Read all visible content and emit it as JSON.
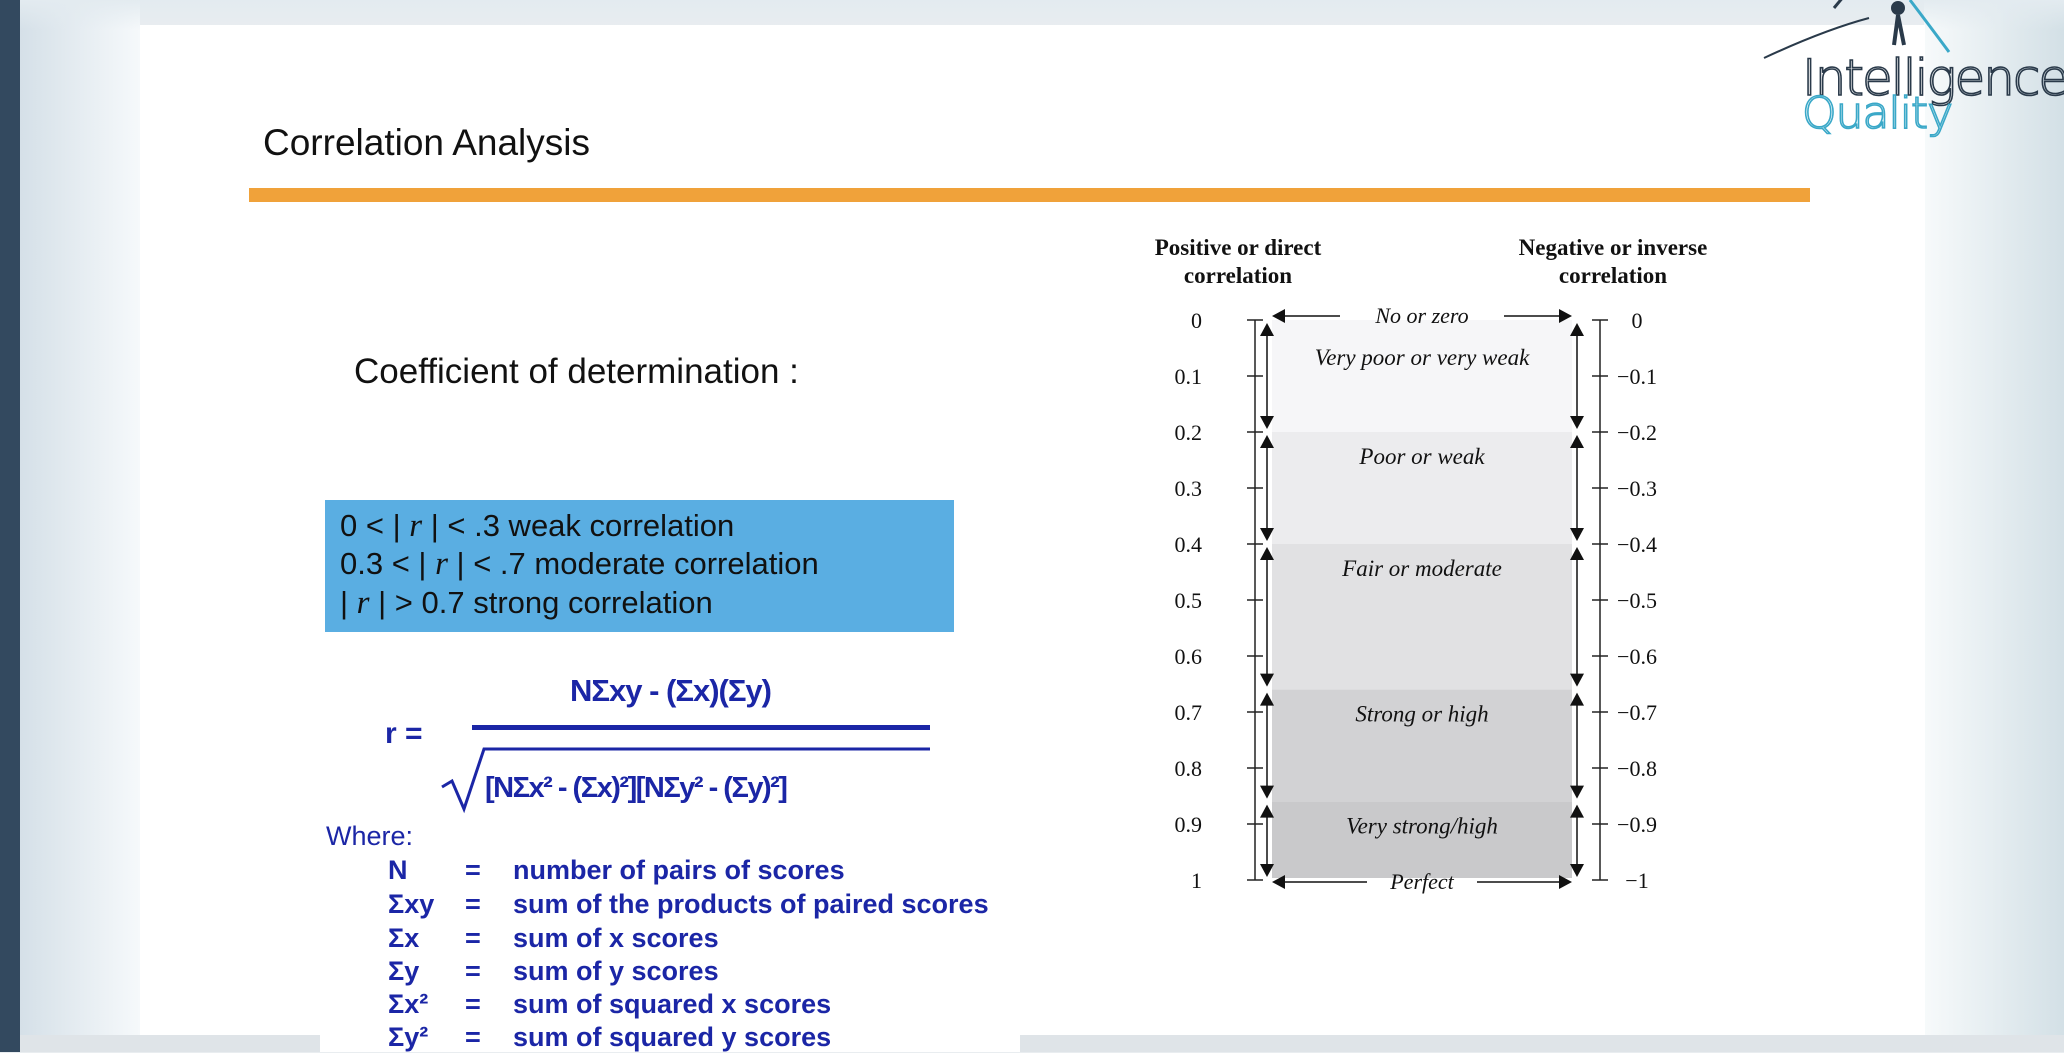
{
  "slide": {
    "title": "Correlation Analysis",
    "subtitle": "Coefficient of determination :"
  },
  "rules": [
    {
      "pre": "0 < | ",
      "r": "r",
      "post": " | < .3 weak correlation"
    },
    {
      "pre": "0.3 < | ",
      "r": "r",
      "post": " | < .7 moderate correlation"
    },
    {
      "pre": "| ",
      "r": "r",
      "post": " | > 0.7 strong correlation"
    }
  ],
  "formula": {
    "lhs": "r =",
    "numerator": "NΣxy - (Σx)(Σy)",
    "denominator": "[NΣx² - (Σx)²][NΣy² - (Σy)²]",
    "where": "Where:",
    "legend": [
      {
        "sym": "N",
        "eq": "=",
        "desc": "number of pairs of scores"
      },
      {
        "sym": "Σxy",
        "eq": "=",
        "desc": "sum of the products of paired scores"
      },
      {
        "sym": "Σx",
        "eq": "=",
        "desc": "sum of x scores"
      },
      {
        "sym": "Σy",
        "eq": "=",
        "desc": "sum of y scores"
      },
      {
        "sym": "Σx²",
        "eq": "=",
        "desc": "sum of squared x scores"
      },
      {
        "sym": "Σy²",
        "eq": "=",
        "desc": "sum of squared y scores"
      }
    ]
  },
  "scale": {
    "positive_header": [
      "Positive or direct",
      "correlation"
    ],
    "negative_header": [
      "Negative or inverse",
      "correlation"
    ],
    "positive_ticks": [
      "0",
      "0.1",
      "0.2",
      "0.3",
      "0.4",
      "0.5",
      "0.6",
      "0.7",
      "0.8",
      "0.9",
      "1"
    ],
    "negative_ticks": [
      "0",
      "−0.1",
      "−0.2",
      "−0.3",
      "−0.4",
      "−0.5",
      "−0.6",
      "−0.7",
      "−0.8",
      "−0.9",
      "−1"
    ],
    "bands": [
      {
        "label": "Very poor or very weak",
        "from": 0.0,
        "to": 0.2,
        "shade": "#f6f6f8"
      },
      {
        "label": "Poor or weak",
        "from": 0.2,
        "to": 0.4,
        "shade": "#ececee"
      },
      {
        "label": "Fair or moderate",
        "from": 0.4,
        "to": 0.66,
        "shade": "#e1e1e3"
      },
      {
        "label": "Strong or high",
        "from": 0.66,
        "to": 0.86,
        "shade": "#d2d2d4"
      },
      {
        "label": "Very strong/high",
        "from": 0.86,
        "to": 1.0,
        "shade": "#c9c9cb"
      }
    ],
    "top_label": "No or zero",
    "bottom_label": "Perfect"
  },
  "logo": {
    "line1": "Intelligence",
    "line2": "Quality",
    "colors": {
      "dark": "#2a3a4a",
      "accent": "#3aa8c8"
    }
  },
  "colors": {
    "accent_rule": "#f0a23a",
    "rules_box": "#5aaee2",
    "formula_blue": "#1b26a6",
    "sidebar": "#33495f"
  }
}
